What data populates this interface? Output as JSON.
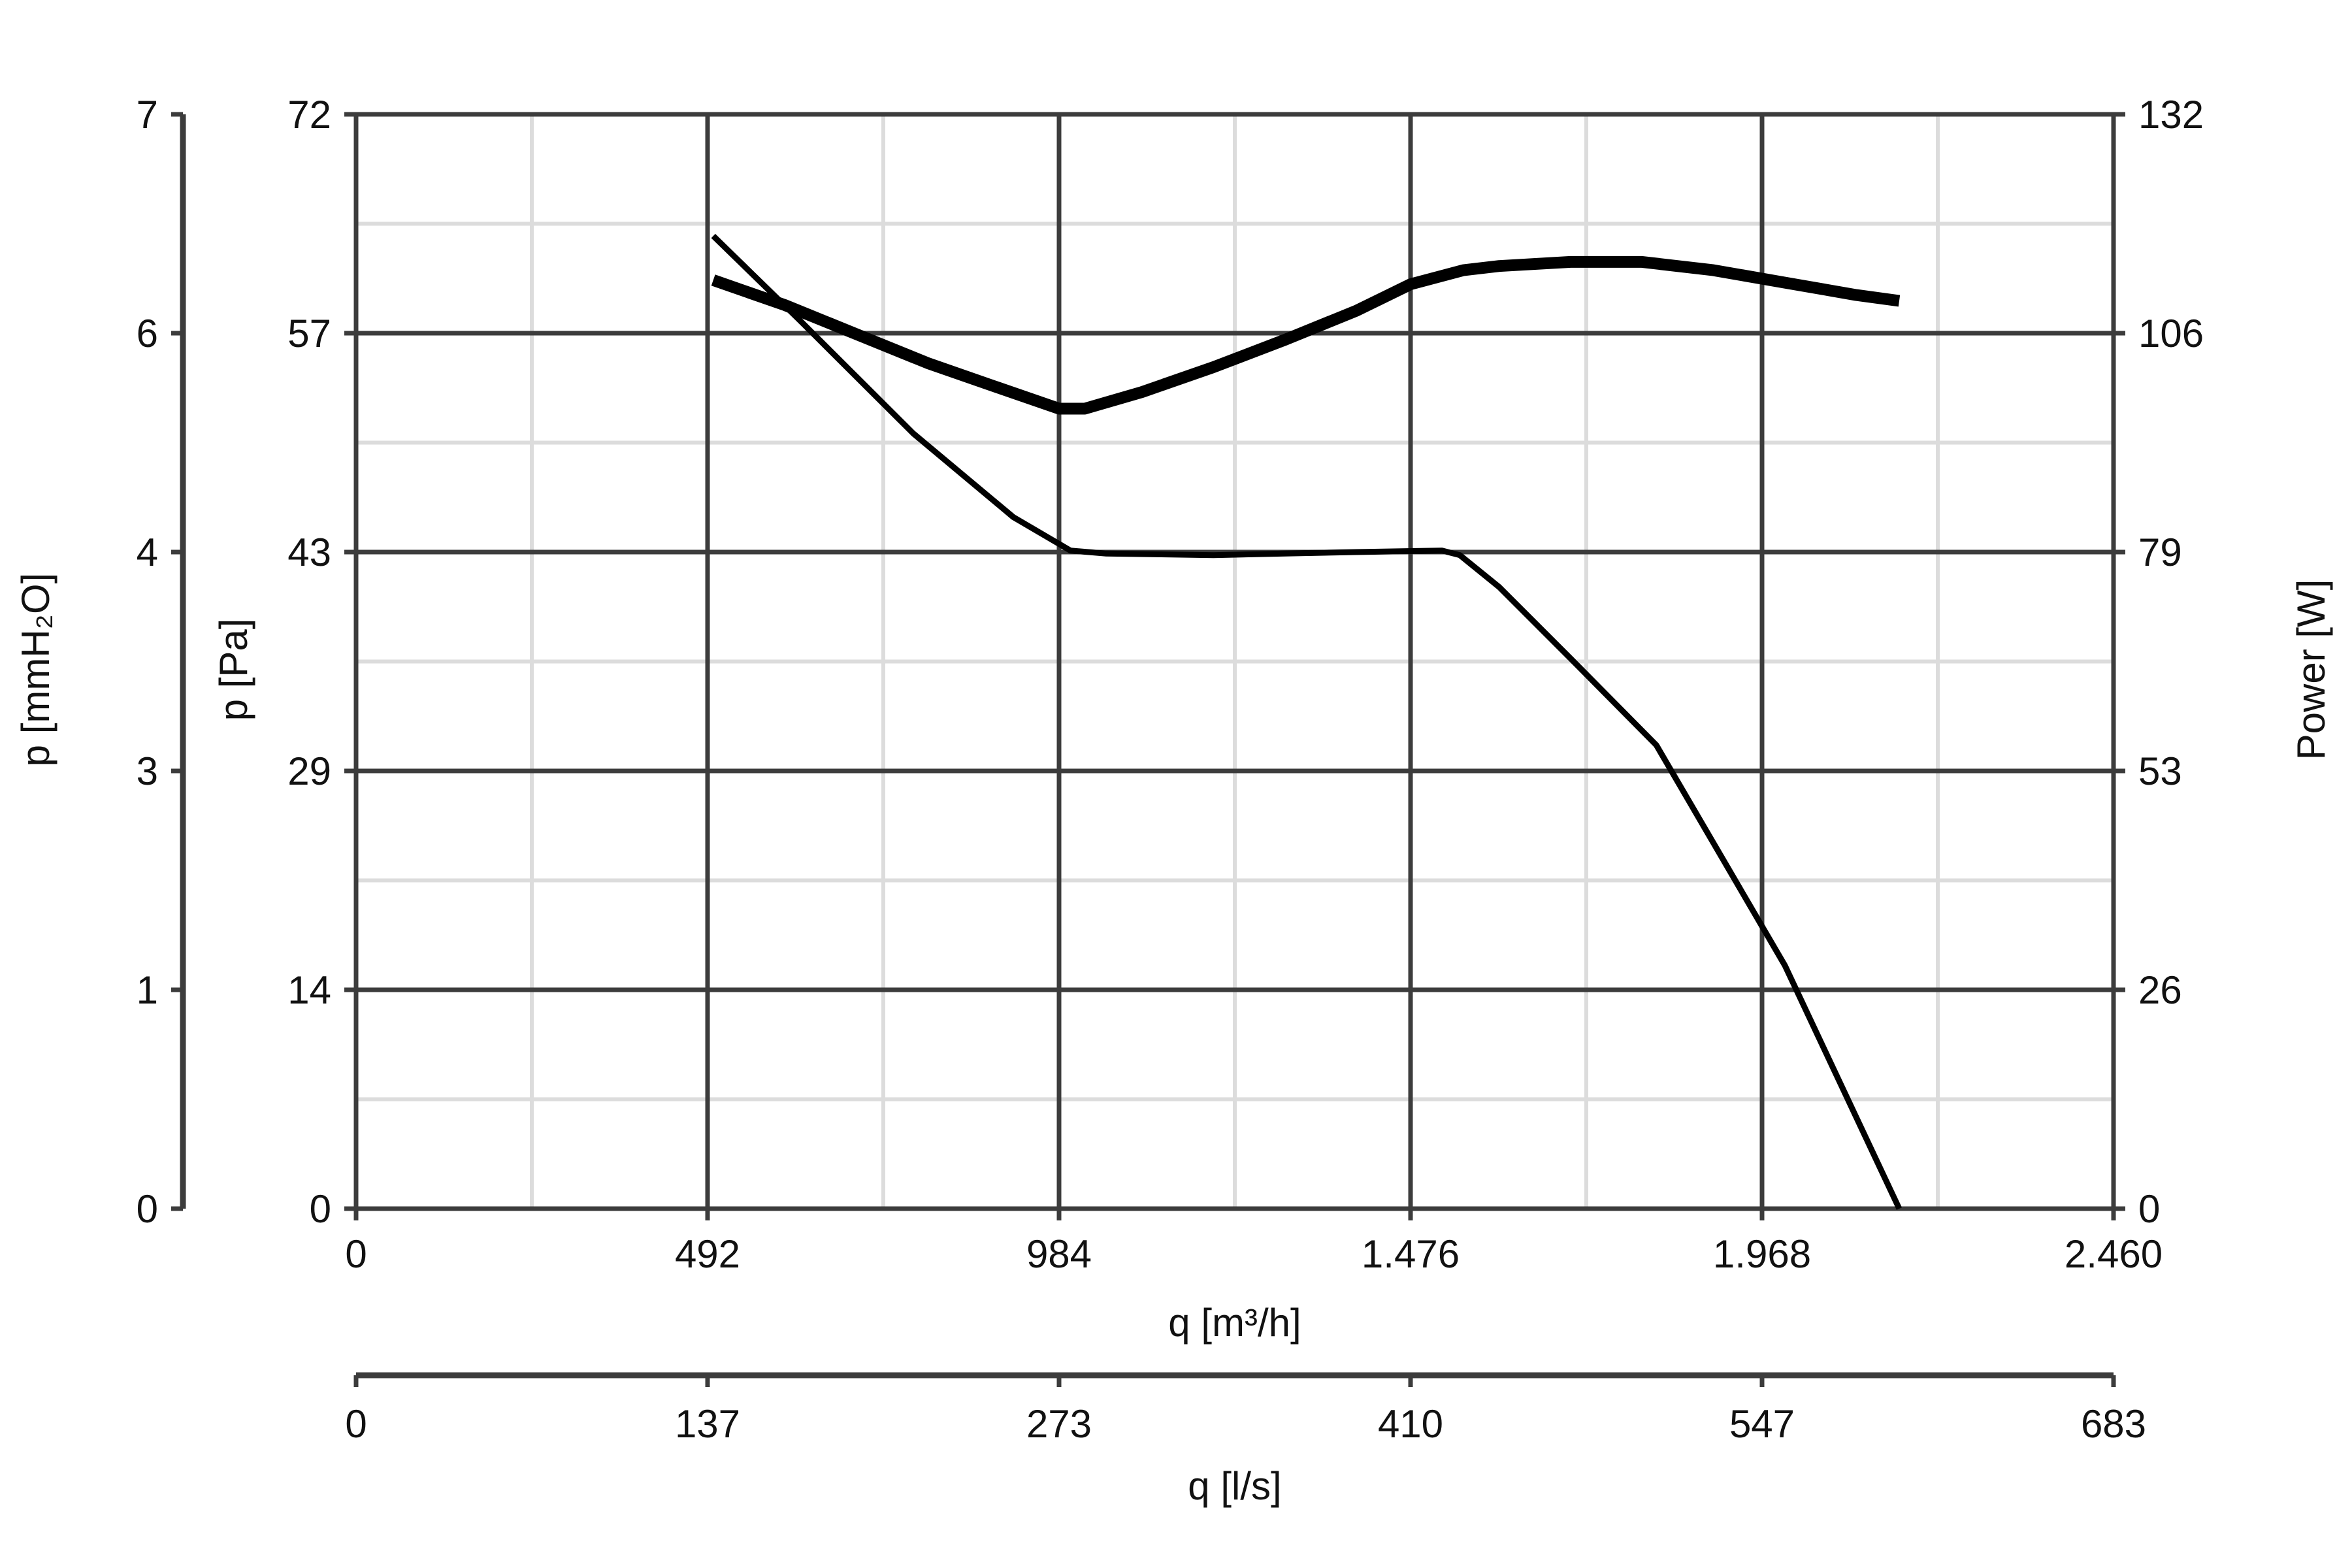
{
  "chart_data": {
    "type": "line",
    "grid": true,
    "x_axes": [
      {
        "label": "q [m³/h]",
        "range": [
          0,
          2460
        ],
        "ticks": [
          0,
          492,
          984,
          1476,
          1968,
          2460
        ],
        "tick_labels": [
          "0",
          "492",
          "984",
          "1.476",
          "1.968",
          "2.460"
        ]
      },
      {
        "label": "q [l/s]",
        "range": [
          0,
          683
        ],
        "tick_labels": [
          "0",
          "137",
          "273",
          "410",
          "547",
          "683"
        ]
      }
    ],
    "y_axes": [
      {
        "label": "p [mmH₂O]",
        "side": "left-outer",
        "tick_labels": [
          "0",
          "1",
          "3",
          "4",
          "6",
          "7"
        ]
      },
      {
        "label": "p [Pa]",
        "side": "left",
        "range": [
          0,
          72
        ],
        "tick_labels": [
          "0",
          "14",
          "29",
          "43",
          "57",
          "72"
        ]
      },
      {
        "label": "Power [W]",
        "side": "right",
        "range": [
          0,
          132
        ],
        "tick_labels": [
          "0",
          "26",
          "53",
          "79",
          "106",
          "132"
        ]
      }
    ],
    "series": [
      {
        "axis": "left",
        "line_width": "thin",
        "color": "#000000",
        "x": [
          500,
          620,
          780,
          920,
          1000,
          1050,
          1200,
          1300,
          1400,
          1520,
          1545,
          1600,
          1700,
          1820,
          2000,
          2160
        ],
        "y": [
          64,
          58.5,
          51,
          45.5,
          43.3,
          43.1,
          43.0,
          43.1,
          43.2,
          43.3,
          43.0,
          40.9,
          36.2,
          30.5,
          16,
          0
        ]
      },
      {
        "axis": "right",
        "line_width": "thick",
        "color": "#000000",
        "x": [
          500,
          600,
          700,
          800,
          900,
          984,
          1020,
          1100,
          1200,
          1300,
          1400,
          1476,
          1550,
          1600,
          1700,
          1800,
          1900,
          2000,
          2100,
          2160
        ],
        "y": [
          112,
          109,
          105.5,
          102,
          99,
          96.5,
          96.5,
          98.5,
          101.5,
          104.8,
          108.3,
          111.5,
          113.2,
          113.7,
          114.2,
          114.2,
          113.2,
          111.7,
          110.2,
          109.5
        ]
      }
    ]
  }
}
